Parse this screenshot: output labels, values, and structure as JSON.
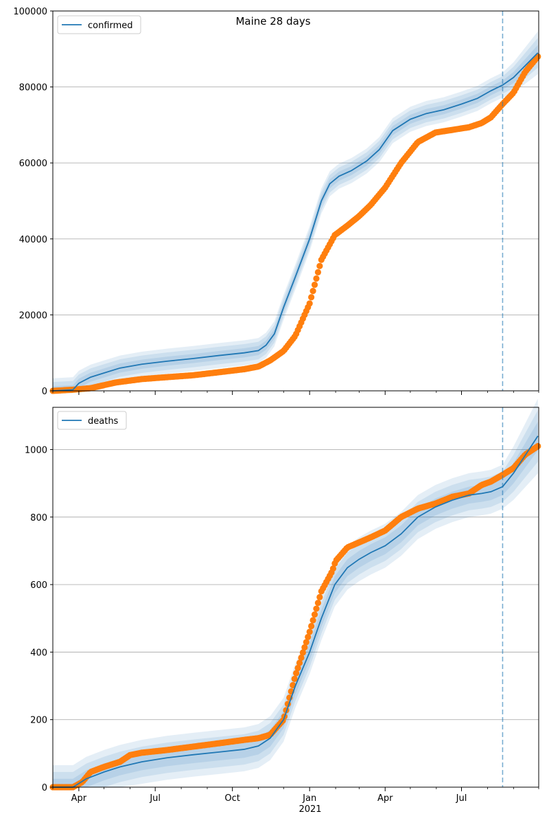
{
  "title": "Maine 28 days",
  "colors": {
    "model": "#1f77b4",
    "observed": "#ff7f0e",
    "grid": "#b0b0b0"
  },
  "x_tick_labels": [
    "Apr",
    "Jul",
    "Oct",
    "Jan",
    "Apr",
    "Jul"
  ],
  "x_year_label": "2021",
  "chart_data": [
    {
      "type": "line",
      "legend": "confirmed",
      "legend_position": "top-left",
      "grid": "horizontal",
      "x_range": [
        "2020-03-01",
        "2021-09-30"
      ],
      "ylim": [
        0,
        100000
      ],
      "yticks": [
        0,
        20000,
        40000,
        60000,
        80000,
        100000
      ],
      "forecast_start": "2021-08-19",
      "model": {
        "name": "confirmed",
        "x": [
          "2020-03-01",
          "2020-03-25",
          "2020-04-01",
          "2020-04-15",
          "2020-05-01",
          "2020-05-20",
          "2020-06-15",
          "2020-07-15",
          "2020-08-15",
          "2020-09-15",
          "2020-10-15",
          "2020-11-01",
          "2020-11-10",
          "2020-11-20",
          "2020-12-01",
          "2020-12-15",
          "2021-01-01",
          "2021-01-15",
          "2021-01-25",
          "2021-02-05",
          "2021-02-20",
          "2021-03-10",
          "2021-03-25",
          "2021-04-10",
          "2021-05-01",
          "2021-05-20",
          "2021-06-10",
          "2021-07-01",
          "2021-07-20",
          "2021-08-05",
          "2021-08-19",
          "2021-09-01",
          "2021-09-30"
        ],
        "y": [
          0,
          300,
          2000,
          3600,
          4700,
          6000,
          7000,
          7800,
          8500,
          9300,
          10000,
          10600,
          12000,
          15000,
          22000,
          30000,
          40000,
          50000,
          54500,
          56500,
          58000,
          60500,
          63500,
          68500,
          71500,
          73000,
          74000,
          75500,
          77000,
          79000,
          80500,
          82500,
          89000
        ],
        "band_widths": [
          1200,
          2300,
          3300
        ]
      },
      "observed": {
        "x": [
          "2020-03-01",
          "2020-03-25",
          "2020-04-15",
          "2020-05-15",
          "2020-06-15",
          "2020-07-15",
          "2020-08-15",
          "2020-09-15",
          "2020-10-15",
          "2020-11-01",
          "2020-11-15",
          "2020-12-01",
          "2020-12-15",
          "2021-01-01",
          "2021-01-15",
          "2021-01-31",
          "2021-02-15",
          "2021-03-01",
          "2021-03-15",
          "2021-04-01",
          "2021-04-20",
          "2021-05-10",
          "2021-05-31",
          "2021-06-20",
          "2021-07-10",
          "2021-07-25",
          "2021-08-05",
          "2021-08-19",
          "2021-09-01",
          "2021-09-15",
          "2021-09-30"
        ],
        "y": [
          0,
          300,
          700,
          2200,
          3100,
          3600,
          4100,
          4900,
          5700,
          6400,
          8000,
          10500,
          14500,
          23000,
          34500,
          41000,
          43500,
          46000,
          49000,
          53500,
          60000,
          65500,
          68000,
          68700,
          69400,
          70500,
          72000,
          75500,
          78500,
          84000,
          88000
        ]
      }
    },
    {
      "type": "line",
      "legend": "deaths",
      "legend_position": "top-left",
      "grid": "horizontal",
      "x_range": [
        "2020-03-01",
        "2021-09-30"
      ],
      "ylim": [
        0,
        1125
      ],
      "yticks": [
        0,
        200,
        400,
        600,
        800,
        1000
      ],
      "forecast_start": "2021-08-19",
      "model": {
        "name": "deaths",
        "x": [
          "2020-03-01",
          "2020-03-25",
          "2020-04-10",
          "2020-05-01",
          "2020-05-20",
          "2020-06-15",
          "2020-07-15",
          "2020-08-15",
          "2020-09-15",
          "2020-10-15",
          "2020-11-01",
          "2020-11-15",
          "2020-12-01",
          "2020-12-15",
          "2021-01-01",
          "2021-01-15",
          "2021-01-31",
          "2021-02-15",
          "2021-03-01",
          "2021-03-15",
          "2021-04-01",
          "2021-04-20",
          "2021-05-10",
          "2021-05-31",
          "2021-06-20",
          "2021-07-10",
          "2021-07-25",
          "2021-08-05",
          "2021-08-19",
          "2021-09-01",
          "2021-09-30"
        ],
        "y": [
          0,
          0,
          25,
          45,
          60,
          75,
          87,
          96,
          104,
          112,
          122,
          145,
          200,
          300,
          400,
          500,
          600,
          650,
          675,
          695,
          715,
          750,
          800,
          830,
          850,
          865,
          870,
          875,
          890,
          930,
          1040
        ],
        "band_widths": [
          25,
          45,
          65
        ]
      },
      "observed": {
        "x": [
          "2020-03-01",
          "2020-03-25",
          "2020-04-05",
          "2020-04-15",
          "2020-05-01",
          "2020-05-20",
          "2020-06-01",
          "2020-06-15",
          "2020-07-15",
          "2020-08-15",
          "2020-09-15",
          "2020-10-15",
          "2020-11-01",
          "2020-11-15",
          "2020-12-01",
          "2020-12-15",
          "2021-01-01",
          "2021-01-15",
          "2021-01-28",
          "2021-02-01",
          "2021-02-15",
          "2021-03-01",
          "2021-03-15",
          "2021-04-01",
          "2021-04-20",
          "2021-05-10",
          "2021-05-31",
          "2021-06-20",
          "2021-07-10",
          "2021-07-25",
          "2021-08-05",
          "2021-08-19",
          "2021-09-01",
          "2021-09-15",
          "2021-09-30"
        ],
        "y": [
          0,
          0,
          15,
          45,
          60,
          75,
          95,
          102,
          110,
          120,
          130,
          140,
          145,
          155,
          200,
          330,
          460,
          580,
          640,
          670,
          710,
          725,
          740,
          760,
          800,
          825,
          840,
          860,
          870,
          895,
          905,
          925,
          945,
          985,
          1010
        ]
      }
    }
  ]
}
